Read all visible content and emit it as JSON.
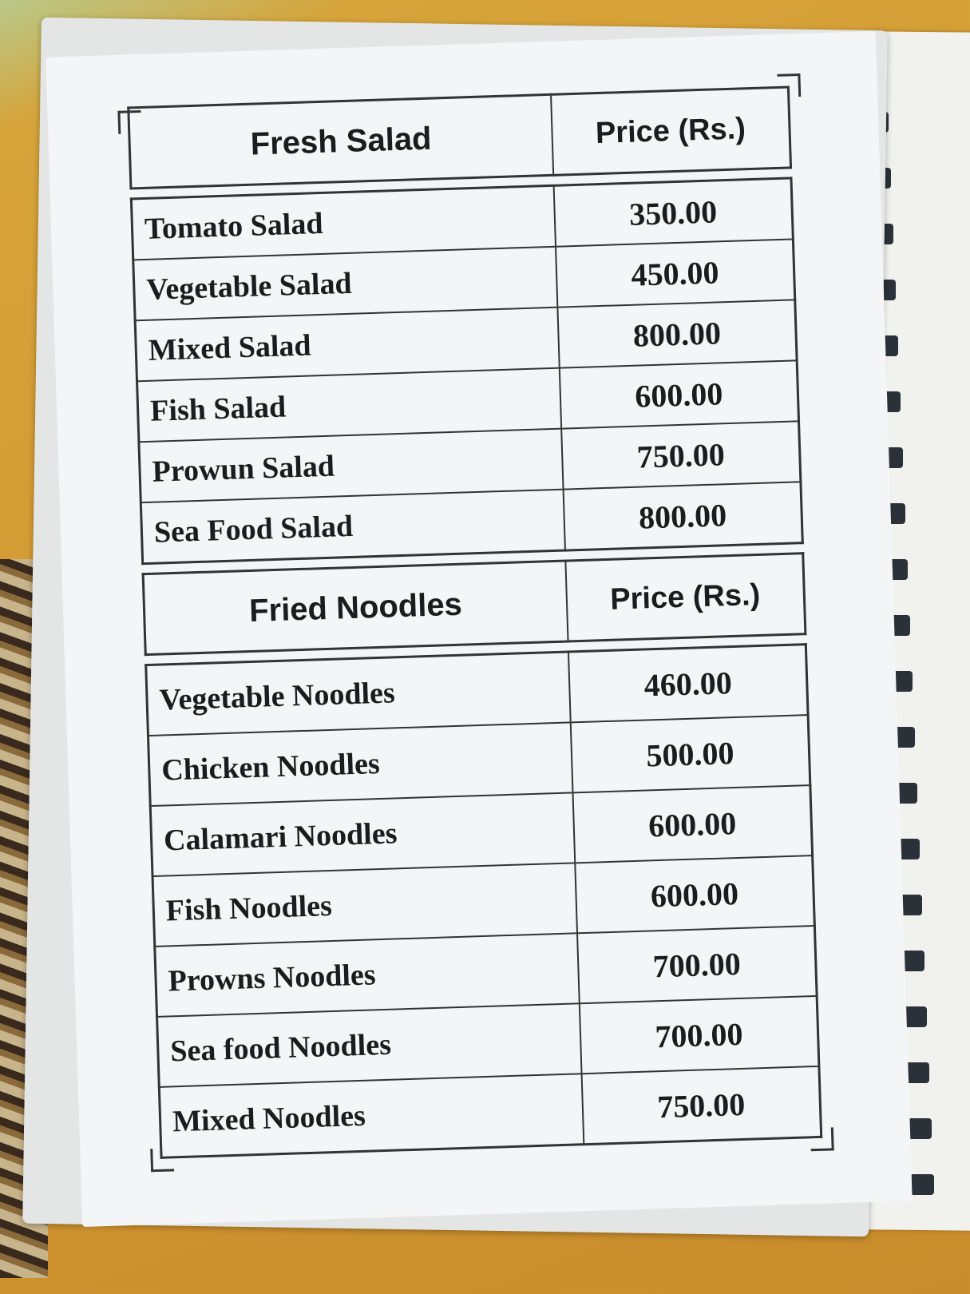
{
  "sections": [
    {
      "title": "Fresh Salad",
      "price_header": "Price (Rs.)",
      "items": [
        {
          "name": "Tomato Salad",
          "price": "350.00"
        },
        {
          "name": "Vegetable Salad",
          "price": "450.00"
        },
        {
          "name": "Mixed Salad",
          "price": "800.00"
        },
        {
          "name": "Fish Salad",
          "price": "600.00"
        },
        {
          "name": "Prowun Salad",
          "price": "750.00"
        },
        {
          "name": "Sea Food Salad",
          "price": "800.00"
        }
      ]
    },
    {
      "title": "Fried Noodles",
      "price_header": "Price (Rs.)",
      "items": [
        {
          "name": "Vegetable Noodles",
          "price": "460.00"
        },
        {
          "name": "Chicken Noodles",
          "price": "500.00"
        },
        {
          "name": "Calamari Noodles",
          "price": "600.00"
        },
        {
          "name": "Fish Noodles",
          "price": "600.00"
        },
        {
          "name": "Prowns Noodles",
          "price": "700.00"
        },
        {
          "name": "Sea food Noodles",
          "price": "700.00"
        },
        {
          "name": "Mixed Noodles",
          "price": "750.00"
        }
      ]
    }
  ]
}
